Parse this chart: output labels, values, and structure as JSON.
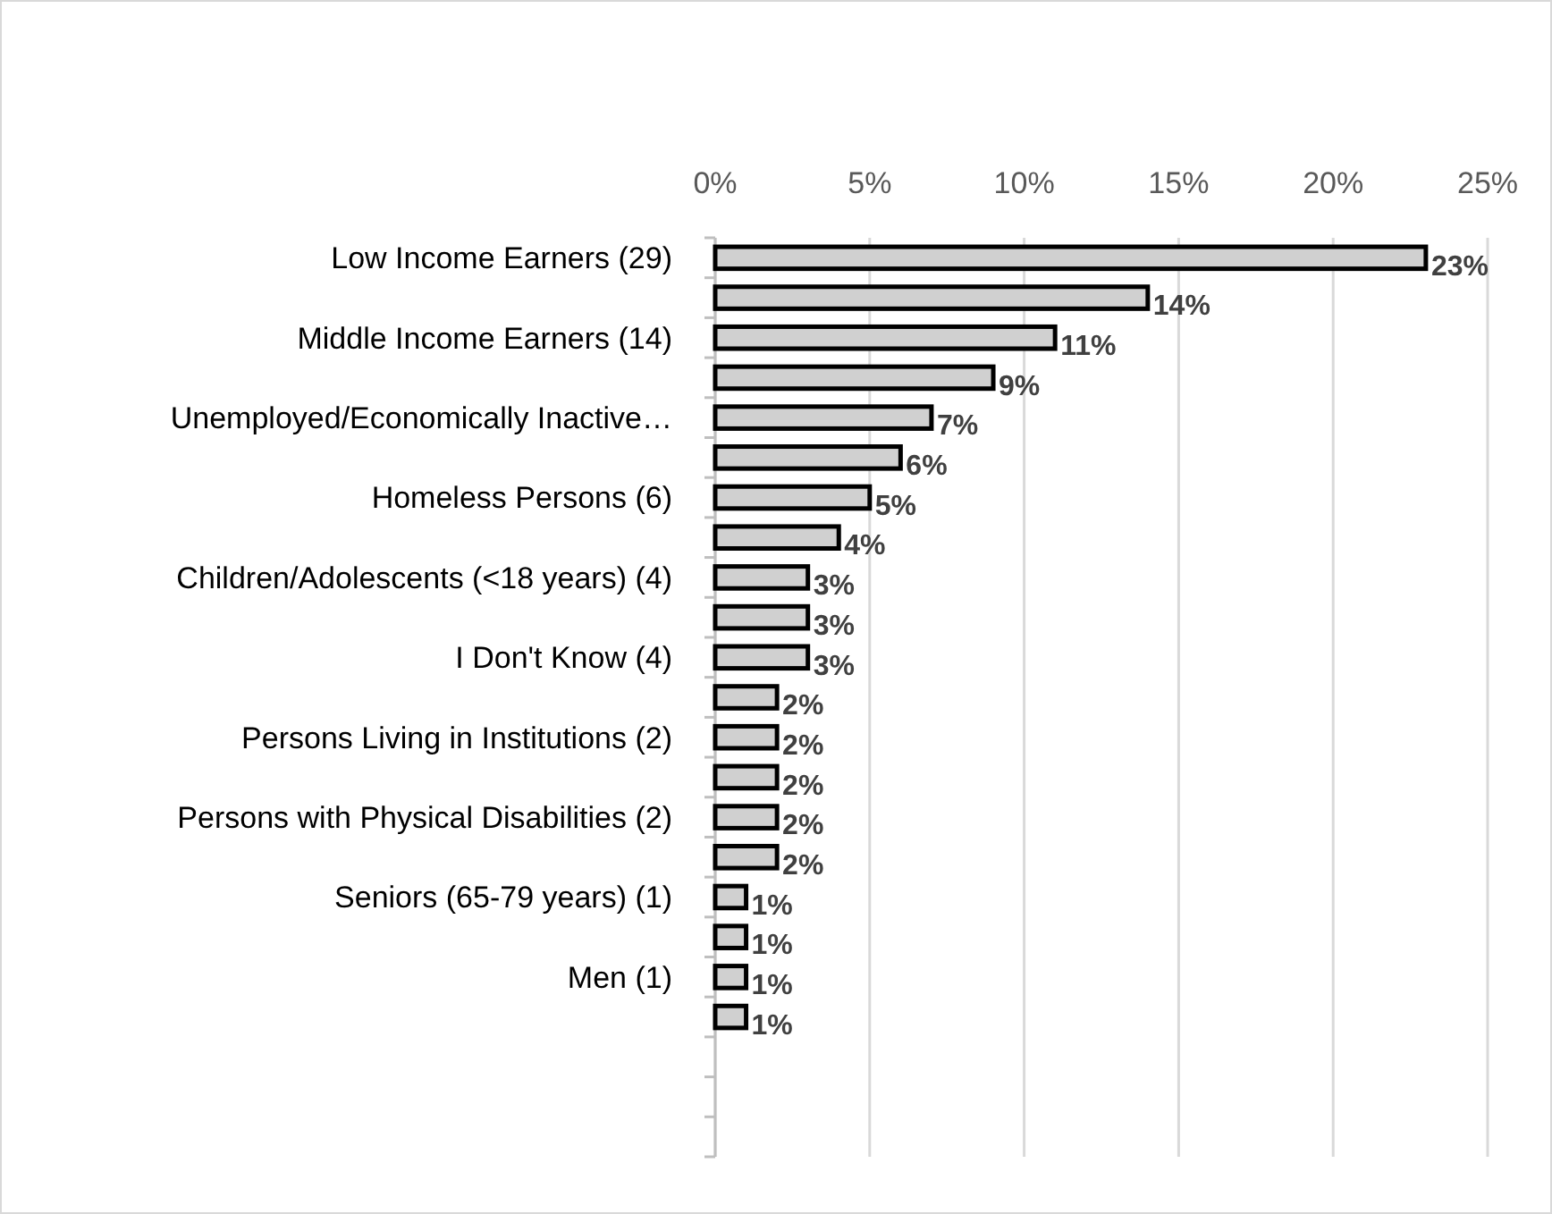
{
  "chart_data": {
    "type": "bar",
    "orientation": "horizontal",
    "categories": [
      "Low Income Earners (29)",
      null,
      "Middle Income Earners (14)",
      null,
      "Unemployed/Economically Inactive…",
      null,
      "Homeless Persons (6)",
      null,
      "Children/Adolescents (<18 years) (4)",
      null,
      "I Don't Know (4)",
      null,
      "Persons Living in Institutions (2)",
      null,
      "Persons with Physical Disabilities (2)",
      null,
      "Seniors (65-79 years) (1)",
      null,
      "Men (1)",
      null,
      null,
      null,
      null
    ],
    "values": [
      23,
      14,
      11,
      9,
      7,
      6,
      5,
      4,
      3,
      3,
      3,
      2,
      2,
      2,
      2,
      2,
      1,
      1,
      1,
      1,
      null,
      null,
      null
    ],
    "color": "#d0d0d0",
    "xlim": [
      0,
      25
    ],
    "xticks": [
      {
        "value": 0,
        "label": "0%"
      },
      {
        "value": 5,
        "label": "5%"
      },
      {
        "value": 10,
        "label": "10%"
      },
      {
        "value": 15,
        "label": "15%"
      },
      {
        "value": 20,
        "label": "20%"
      },
      {
        "value": 25,
        "label": "25%"
      }
    ],
    "value_labels": [
      "23%",
      "14%",
      "11%",
      "9%",
      "7%",
      "6%",
      "5%",
      "4%",
      "3%",
      "3%",
      "3%",
      "2%",
      "2%",
      "2%",
      "2%",
      "2%",
      "1%",
      "1%",
      "1%",
      "1%",
      null,
      null,
      null
    ],
    "grid": "x"
  }
}
